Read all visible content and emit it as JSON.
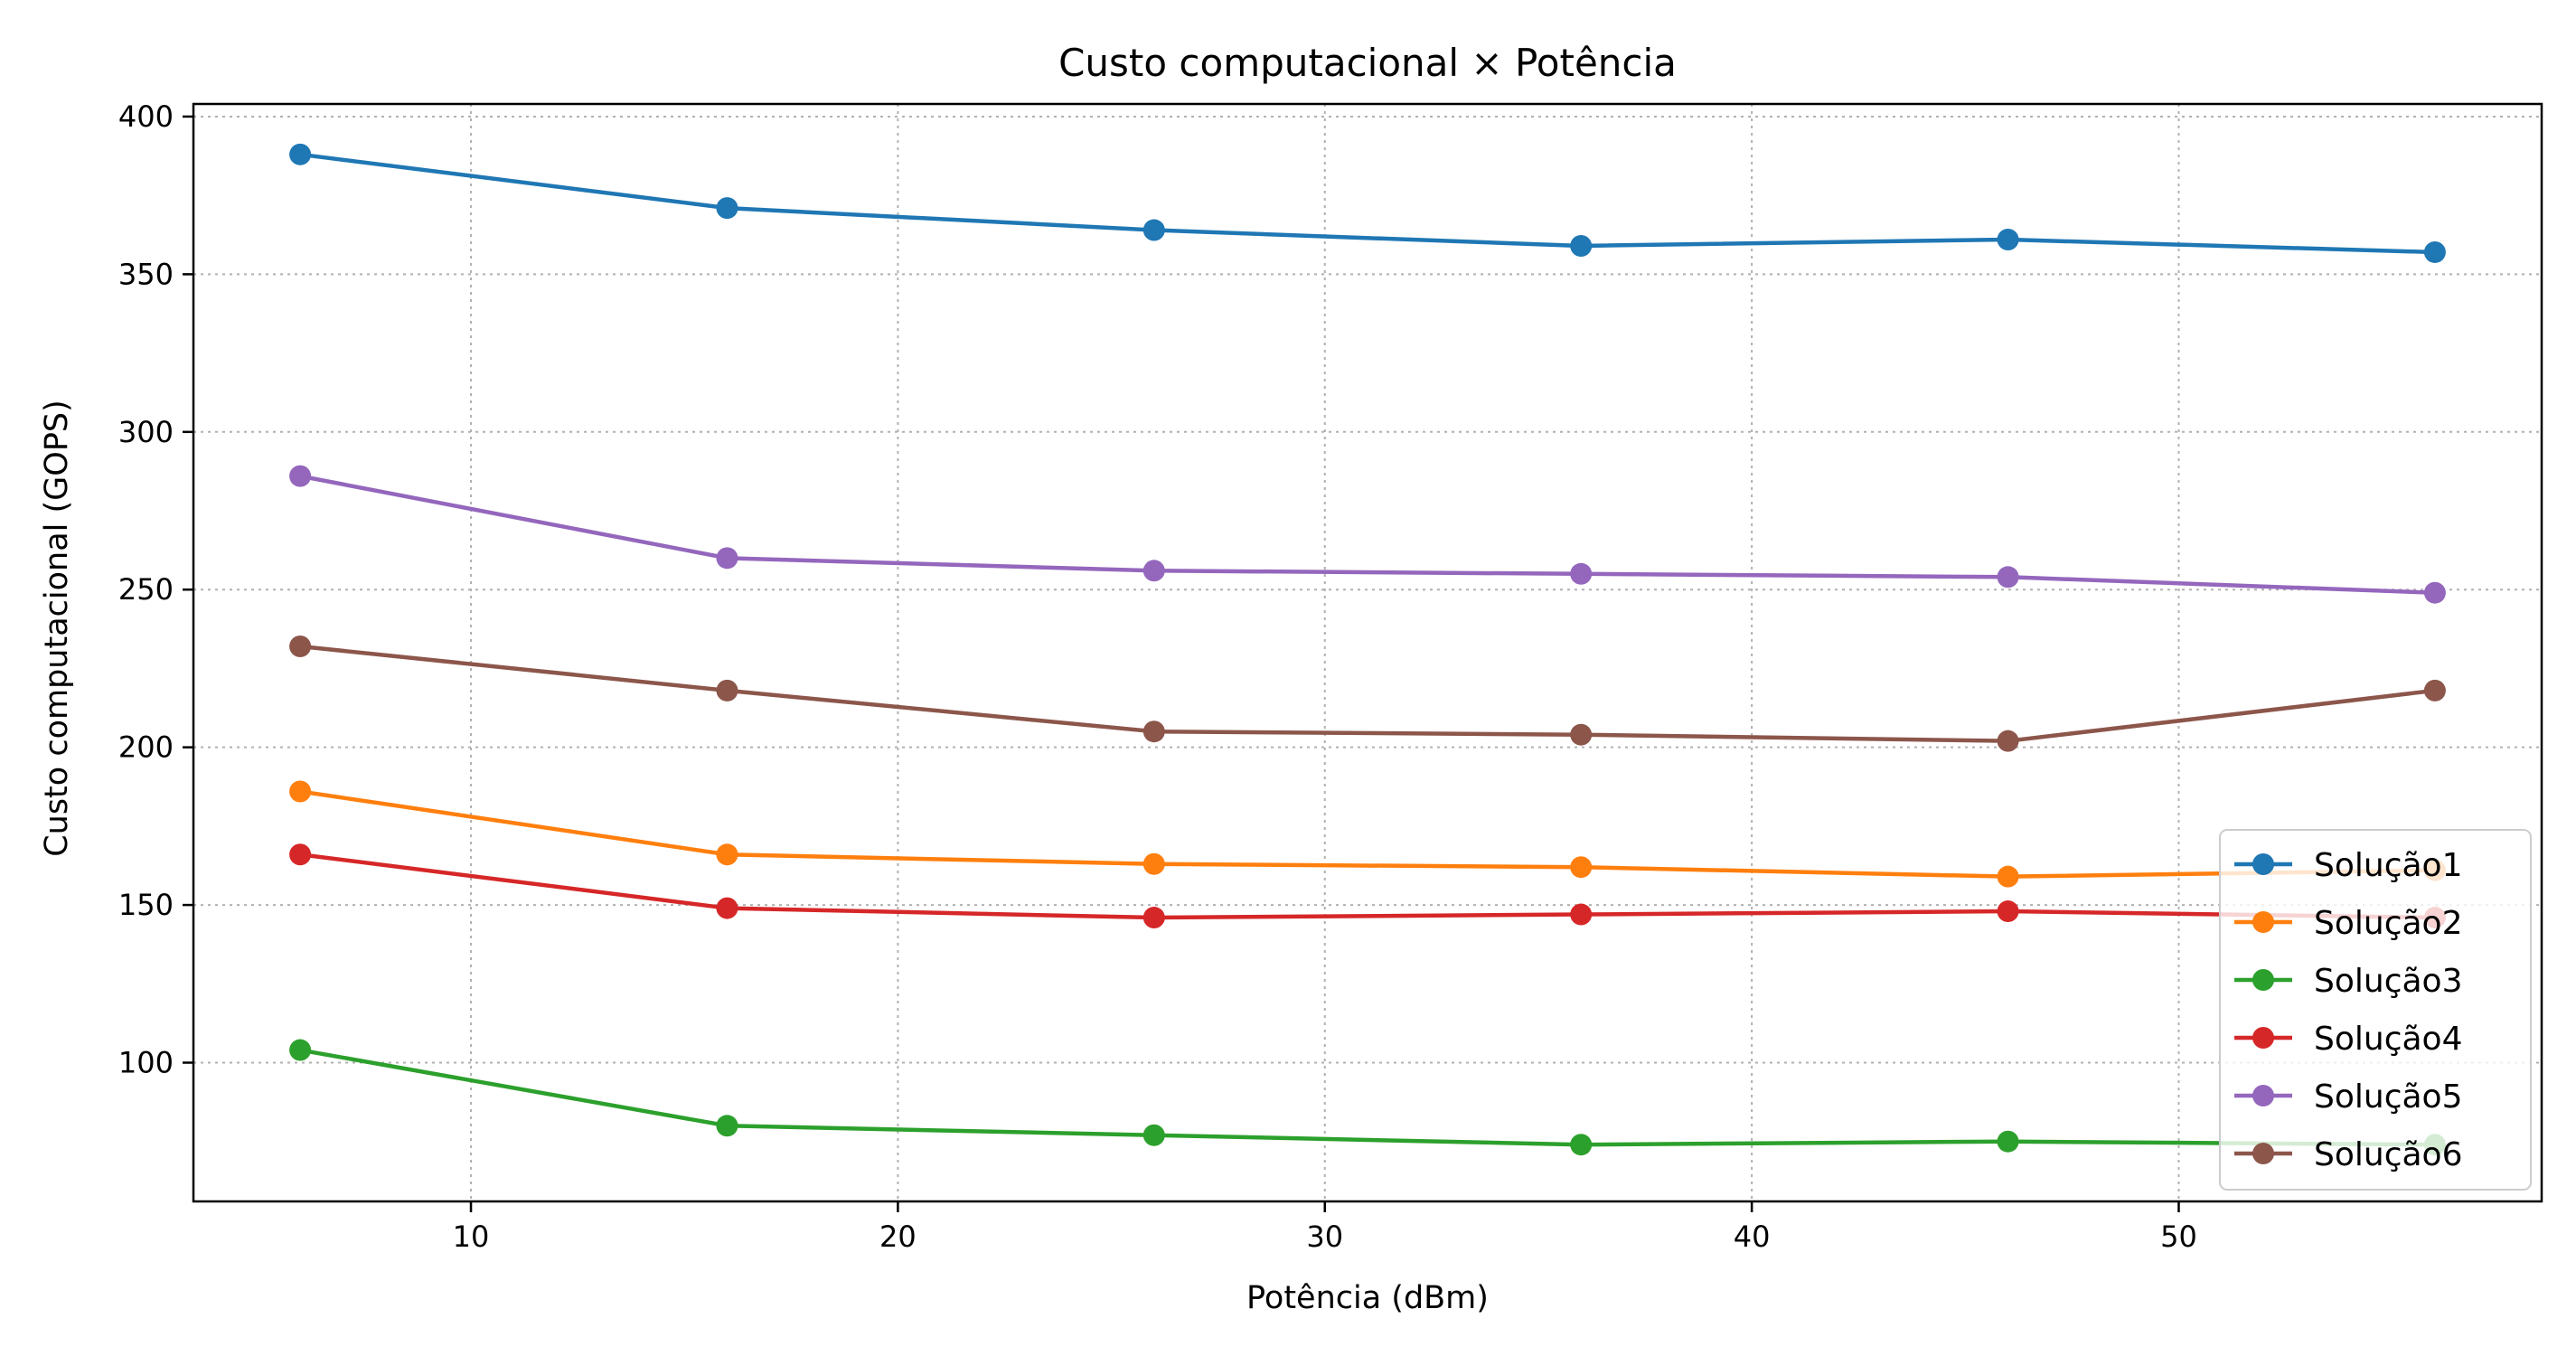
{
  "chart_data": {
    "type": "line",
    "title": "Custo computacional × Potência",
    "xlabel": "Potência (dBm)",
    "ylabel": "Custo computacional (GOPS)",
    "x": [
      6,
      16,
      26,
      36,
      46,
      56
    ],
    "xlim": [
      3.5,
      58.5
    ],
    "ylim": [
      56,
      404
    ],
    "xticks": [
      10,
      20,
      30,
      40,
      50
    ],
    "yticks": [
      100,
      150,
      200,
      250,
      300,
      350,
      400
    ],
    "grid": true,
    "legend_position": "lower-right",
    "series": [
      {
        "name": "Solução1",
        "color": "#1f77b4",
        "values": [
          388,
          371,
          364,
          359,
          361,
          357
        ]
      },
      {
        "name": "Solução2",
        "color": "#ff7f0e",
        "values": [
          186,
          166,
          163,
          162,
          159,
          161
        ]
      },
      {
        "name": "Solução3",
        "color": "#2ca02c",
        "values": [
          104,
          80,
          77,
          74,
          75,
          74
        ]
      },
      {
        "name": "Solução4",
        "color": "#d62728",
        "values": [
          166,
          149,
          146,
          147,
          148,
          146
        ]
      },
      {
        "name": "Solução5",
        "color": "#9467bd",
        "values": [
          286,
          260,
          256,
          255,
          254,
          249
        ]
      },
      {
        "name": "Solução6",
        "color": "#8c564b",
        "values": [
          232,
          218,
          205,
          204,
          202,
          218
        ]
      }
    ]
  }
}
